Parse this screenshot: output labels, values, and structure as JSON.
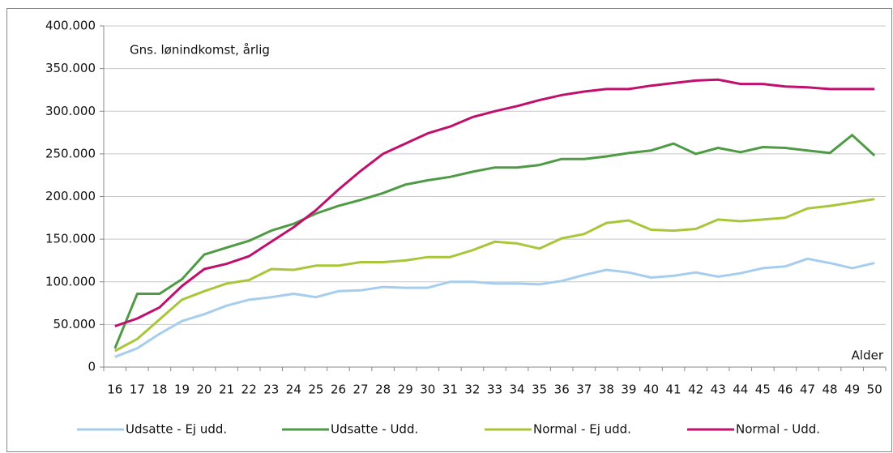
{
  "chart_data": {
    "type": "line",
    "annotations": [
      "Gns. lønindkomst,  årlig"
    ],
    "x_label": "Alder",
    "categories": [
      "16",
      "17",
      "18",
      "19",
      "20",
      "21",
      "22",
      "23",
      "24",
      "25",
      "26",
      "27",
      "28",
      "29",
      "30",
      "31",
      "32",
      "33",
      "34",
      "35",
      "36",
      "37",
      "38",
      "39",
      "40",
      "41",
      "42",
      "43",
      "44",
      "45",
      "46",
      "47",
      "48",
      "49",
      "50"
    ],
    "ylim": [
      0,
      400000
    ],
    "yticks": [
      0,
      {
        "value": 50000,
        "label": "50.000"
      },
      {
        "value": 100000,
        "label": "100.000"
      },
      {
        "value": 150000,
        "label": "150.000"
      },
      {
        "value": 200000,
        "label": "200.000"
      },
      {
        "value": 250000,
        "label": "250.000"
      },
      {
        "value": 300000,
        "label": "300.000"
      },
      {
        "value": 350000,
        "label": "350.000"
      },
      {
        "value": 400000,
        "label": "400.000"
      }
    ],
    "grid": true,
    "legend": "bottom",
    "series": [
      {
        "name": "Udsatte - Ej udd.",
        "color": "#a6cdee",
        "values": [
          12000,
          22000,
          39000,
          54000,
          62000,
          72000,
          79000,
          82000,
          86000,
          82000,
          89000,
          90000,
          94000,
          93000,
          93000,
          100000,
          100000,
          98000,
          98000,
          97000,
          101000,
          108000,
          114000,
          111000,
          105000,
          107000,
          111000,
          106000,
          110000,
          116000,
          118000,
          127000,
          122000,
          116000,
          122000
        ]
      },
      {
        "name": "Udsatte - Udd.",
        "color": "#4e9a45",
        "values": [
          22000,
          86000,
          86000,
          103000,
          132000,
          140000,
          148000,
          160000,
          168000,
          180000,
          189000,
          196000,
          204000,
          214000,
          219000,
          223000,
          229000,
          234000,
          234000,
          237000,
          244000,
          244000,
          247000,
          251000,
          254000,
          262000,
          250000,
          257000,
          252000,
          258000,
          257000,
          254000,
          251000,
          272000,
          248000
        ]
      },
      {
        "name": "Normal - Ej udd.",
        "color": "#a8c63a",
        "values": [
          19000,
          33000,
          56000,
          79000,
          89000,
          98000,
          102000,
          115000,
          114000,
          119000,
          119000,
          123000,
          123000,
          125000,
          129000,
          129000,
          137000,
          147000,
          145000,
          139000,
          151000,
          156000,
          169000,
          172000,
          161000,
          160000,
          162000,
          173000,
          171000,
          173000,
          175000,
          186000,
          189000,
          193000,
          197000
        ]
      },
      {
        "name": "Normal - Udd.",
        "color": "#c0106e",
        "values": [
          48000,
          57000,
          70000,
          95000,
          115000,
          121000,
          130000,
          147000,
          164000,
          184000,
          208000,
          230000,
          250000,
          262000,
          274000,
          282000,
          293000,
          300000,
          306000,
          313000,
          319000,
          323000,
          326000,
          326000,
          330000,
          333000,
          336000,
          337000,
          332000,
          332000,
          329000,
          328000,
          326000,
          326000,
          326000
        ]
      }
    ]
  }
}
